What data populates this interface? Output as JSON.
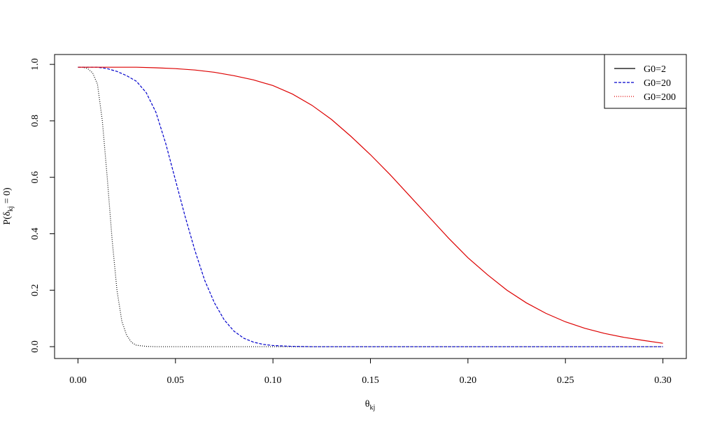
{
  "chart_data": {
    "type": "line",
    "xlabel": {
      "symbol": "θ",
      "subscript": "kj"
    },
    "ylabel": {
      "prefix": "P(δ",
      "subscript": "kj",
      "suffix": " = 0)"
    },
    "xlim": [
      -0.012,
      0.312
    ],
    "ylim": [
      -0.042,
      1.035
    ],
    "xticks": [
      {
        "value": 0,
        "label": "0.00"
      },
      {
        "value": 0.05,
        "label": "0.05"
      },
      {
        "value": 0.1,
        "label": "0.10"
      },
      {
        "value": 0.15,
        "label": "0.15"
      },
      {
        "value": 0.2,
        "label": "0.20"
      },
      {
        "value": 0.25,
        "label": "0.25"
      },
      {
        "value": 0.3,
        "label": "0.30"
      }
    ],
    "yticks": [
      {
        "value": 0,
        "label": "0.0"
      },
      {
        "value": 0.2,
        "label": "0.2"
      },
      {
        "value": 0.4,
        "label": "0.4"
      },
      {
        "value": 0.6,
        "label": "0.6"
      },
      {
        "value": 0.8,
        "label": "0.8"
      },
      {
        "value": 1,
        "label": "1.0"
      }
    ],
    "legend": "top-right",
    "series": [
      {
        "name": "G0=2",
        "color": "#000000",
        "dash": "1,2",
        "legend_dash": "none",
        "x": [
          0,
          0.0025,
          0.005,
          0.0075,
          0.01,
          0.0125,
          0.015,
          0.0175,
          0.02,
          0.0225,
          0.025,
          0.0275,
          0.03,
          0.035,
          0.04,
          0.3
        ],
        "values": [
          0.99,
          0.99,
          0.985,
          0.97,
          0.93,
          0.8,
          0.6,
          0.38,
          0.2,
          0.09,
          0.04,
          0.015,
          0.005,
          0.001,
          0,
          0
        ]
      },
      {
        "name": "G0=20",
        "color": "#0000cc",
        "dash": "4,2",
        "legend_dash": "4,2",
        "x": [
          0,
          0.005,
          0.01,
          0.015,
          0.02,
          0.025,
          0.03,
          0.035,
          0.04,
          0.045,
          0.05,
          0.055,
          0.06,
          0.065,
          0.07,
          0.075,
          0.08,
          0.085,
          0.09,
          0.095,
          0.1,
          0.11,
          0.12,
          0.3
        ],
        "values": [
          0.99,
          0.99,
          0.99,
          0.985,
          0.975,
          0.96,
          0.94,
          0.9,
          0.83,
          0.72,
          0.59,
          0.46,
          0.34,
          0.235,
          0.155,
          0.095,
          0.055,
          0.03,
          0.016,
          0.008,
          0.004,
          0.001,
          0,
          0
        ]
      },
      {
        "name": "G0=200",
        "color": "#dd0000",
        "dash": "none",
        "legend_dash": "1,2",
        "x": [
          0,
          0.01,
          0.02,
          0.03,
          0.04,
          0.05,
          0.06,
          0.07,
          0.08,
          0.09,
          0.1,
          0.11,
          0.12,
          0.13,
          0.14,
          0.15,
          0.16,
          0.17,
          0.18,
          0.19,
          0.2,
          0.21,
          0.22,
          0.23,
          0.24,
          0.25,
          0.26,
          0.27,
          0.28,
          0.29,
          0.3
        ],
        "values": [
          0.99,
          0.99,
          0.99,
          0.99,
          0.988,
          0.985,
          0.98,
          0.972,
          0.96,
          0.945,
          0.925,
          0.895,
          0.855,
          0.805,
          0.745,
          0.68,
          0.61,
          0.535,
          0.46,
          0.385,
          0.315,
          0.255,
          0.2,
          0.155,
          0.118,
          0.088,
          0.065,
          0.047,
          0.033,
          0.022,
          0.012
        ]
      }
    ]
  }
}
